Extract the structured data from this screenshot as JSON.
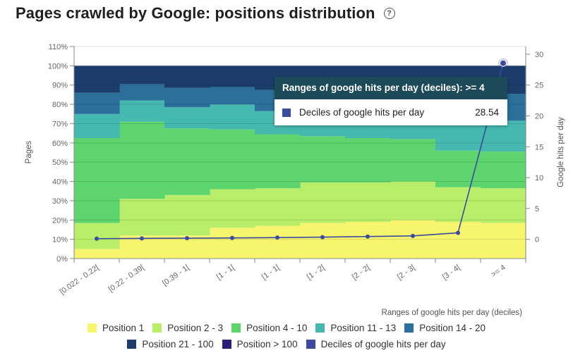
{
  "header": {
    "title": "Pages crawled by Google: positions distribution",
    "help_icon": "?"
  },
  "chart_data": {
    "type": "area",
    "stacking": "percent",
    "categories": [
      "[0.022 - 0.22[",
      "[0.22 - 0.39[",
      "[0.39 - 1[",
      "[1 - 1[",
      "[1 - 1[",
      "[1 - 2[",
      "[2 - 2[",
      "[2 - 3[",
      "[3 - 4[",
      ">= 4"
    ],
    "series": [
      {
        "name": "Position 1",
        "color": "#f7f46d",
        "values": [
          5,
          12,
          12,
          16,
          17,
          18.5,
          19,
          20,
          19,
          18.5
        ]
      },
      {
        "name": "Position 2 - 3",
        "color": "#b9ee6a",
        "values": [
          13.5,
          19,
          21,
          20,
          19.5,
          21,
          20.5,
          20,
          18,
          18
        ]
      },
      {
        "name": "Position 4 - 10",
        "color": "#5dd46e",
        "values": [
          44,
          40,
          34.5,
          31,
          28,
          24,
          23,
          22,
          19,
          19
        ]
      },
      {
        "name": "Position 11 - 13",
        "color": "#45b9b0",
        "values": [
          12.5,
          11,
          11,
          13,
          12,
          12,
          13,
          12,
          15,
          16
        ]
      },
      {
        "name": "Position 14 - 20",
        "color": "#2b6f9a",
        "values": [
          11,
          8.5,
          10,
          9,
          11,
          12,
          12,
          12,
          14,
          14
        ]
      },
      {
        "name": "Position 21 - 100",
        "color": "#1c3d6b",
        "values": [
          14,
          9.5,
          11.5,
          11,
          12.5,
          12.5,
          12.5,
          14,
          15,
          14.5
        ]
      },
      {
        "name": "Position > 100",
        "color": "#2a1f78",
        "values": [
          0,
          0,
          0,
          0,
          0,
          0,
          0,
          0,
          0,
          0
        ]
      }
    ],
    "line_series": {
      "name": "Deciles of google hits per day",
      "color": "#3c4aa0",
      "axis": "right",
      "values": [
        0.1,
        0.15,
        0.18,
        0.22,
        0.28,
        0.35,
        0.45,
        0.55,
        1.05,
        28.54
      ]
    },
    "xlabel": "Ranges of google hits per day (deciles)",
    "ylabel": "Pages",
    "ylabel_right": "Google hits per day",
    "y_ticks": [
      "0%",
      "10%",
      "20%",
      "30%",
      "40%",
      "50%",
      "60%",
      "70%",
      "80%",
      "90%",
      "100%",
      "110%"
    ],
    "ylim": [
      0,
      110
    ],
    "y2_ticks": [
      "0",
      "5",
      "10",
      "15",
      "20",
      "25",
      "30"
    ],
    "y2lim": [
      -3.125,
      31.25
    ],
    "legend_position": "bottom"
  },
  "tooltip": {
    "header": "Ranges of google hits per day (deciles): >= 4",
    "series_name": "Deciles of google hits per day",
    "value": "28.54",
    "color": "#3c4aa0"
  }
}
